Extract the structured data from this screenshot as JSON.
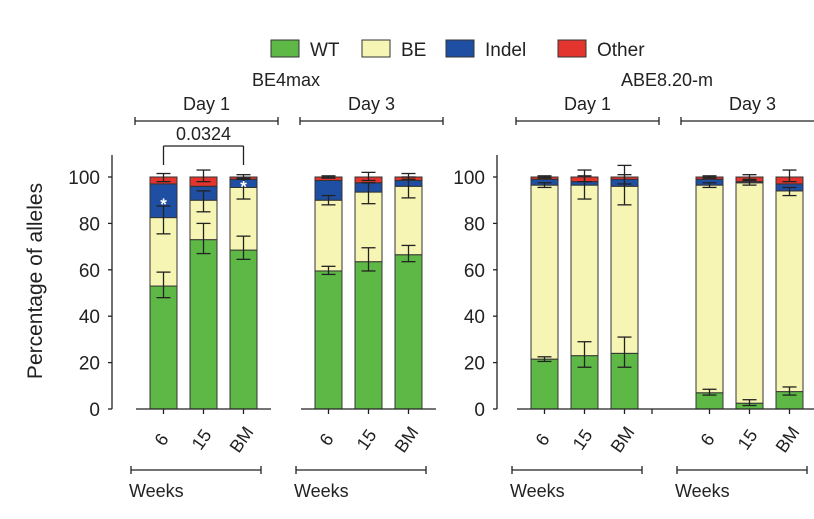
{
  "chart_data": {
    "type": "bar",
    "stacked": true,
    "ylabel": "Percentage of alleles",
    "ylim": [
      0,
      100
    ],
    "yticks": [
      0,
      20,
      40,
      60,
      80,
      100
    ],
    "colors": {
      "WT": "#5db846",
      "BE": "#f7f5b3",
      "Indel": "#1f4fa3",
      "Other": "#e3342e"
    },
    "legend": [
      "WT",
      "BE",
      "Indel",
      "Other"
    ],
    "stack_order": [
      "WT",
      "BE",
      "Indel",
      "Other"
    ],
    "x_unit_label": "Weeks",
    "panels": [
      {
        "title": "BE4max",
        "groups": [
          {
            "label": "Day 1",
            "categories": [
              "6",
              "15",
              "BM"
            ],
            "series": [
              {
                "name": "WT",
                "values": [
                  53,
                  73,
                  68.5
                ]
              },
              {
                "name": "BE",
                "values": [
                  29.5,
                  17,
                  27
                ]
              },
              {
                "name": "Indel",
                "values": [
                  14.5,
                  6,
                  3.5
                ]
              },
              {
                "name": "Other",
                "values": [
                  3,
                  4,
                  1
                ]
              }
            ],
            "error_bars": [
              {
                "series": "WT",
                "plus": [
                  6,
                  7,
                  6
                ],
                "minus": [
                  5,
                  6,
                  4
                ]
              },
              {
                "series": "BE",
                "plus": [
                  5,
                  4,
                  4
                ],
                "minus": [
                  7,
                  5,
                  5
                ]
              },
              {
                "series": "Other",
                "plus": [
                  1.5,
                  3,
                  1
                ],
                "minus": [
                  2,
                  2,
                  1
                ]
              }
            ],
            "significance_markers": [
              "*",
              "",
              "*"
            ]
          },
          {
            "label": "Day 3",
            "categories": [
              "6",
              "15",
              "BM"
            ],
            "series": [
              {
                "name": "WT",
                "values": [
                  59.5,
                  63.5,
                  66.5
                ]
              },
              {
                "name": "BE",
                "values": [
                  30.5,
                  30,
                  29.5
                ]
              },
              {
                "name": "Indel",
                "values": [
                  8.5,
                  4,
                  2.5
                ]
              },
              {
                "name": "Other",
                "values": [
                  1.5,
                  2.5,
                  1.5
                ]
              }
            ],
            "error_bars": [
              {
                "series": "WT",
                "plus": [
                  2,
                  6,
                  4
                ],
                "minus": [
                  1.5,
                  4,
                  3
                ]
              },
              {
                "series": "BE",
                "plus": [
                  2,
                  4,
                  4
                ],
                "minus": [
                  2,
                  5,
                  5
                ]
              },
              {
                "series": "Other",
                "plus": [
                  0.5,
                  2,
                  1.5
                ],
                "minus": [
                  0.5,
                  1.5,
                  1
                ]
              }
            ]
          }
        ],
        "comparison": {
          "group": 0,
          "from": 0,
          "to": 2,
          "label": "0.0324"
        }
      },
      {
        "title": "ABE8.20-m",
        "groups": [
          {
            "label": "Day 1",
            "categories": [
              "6",
              "15",
              "BM"
            ],
            "series": [
              {
                "name": "WT",
                "values": [
                  21.5,
                  23,
                  24
                ]
              },
              {
                "name": "BE",
                "values": [
                  75,
                  73.5,
                  72
                ]
              },
              {
                "name": "Indel",
                "values": [
                  2.5,
                  1.5,
                  3
                ]
              },
              {
                "name": "Other",
                "values": [
                  1,
                  2,
                  1
                ]
              }
            ],
            "error_bars": [
              {
                "series": "WT",
                "plus": [
                  1,
                  6,
                  7
                ],
                "minus": [
                  1,
                  5,
                  6
                ]
              },
              {
                "series": "BE",
                "plus": [
                  1,
                  4,
                  5
                ],
                "minus": [
                  1,
                  6,
                  8
                ]
              },
              {
                "series": "Other",
                "plus": [
                  0.5,
                  3,
                  5
                ],
                "minus": [
                  0.5,
                  2,
                  3
                ]
              }
            ]
          },
          {
            "label": "Day 3",
            "categories": [
              "6",
              "15",
              "BM"
            ],
            "series": [
              {
                "name": "WT",
                "values": [
                  7,
                  2.5,
                  7.5
                ]
              },
              {
                "name": "BE",
                "values": [
                  89.5,
                  95,
                  86.5
                ]
              },
              {
                "name": "Indel",
                "values": [
                  2.5,
                  0.5,
                  3
                ]
              },
              {
                "name": "Other",
                "values": [
                  1,
                  2,
                  3
                ]
              }
            ],
            "error_bars": [
              {
                "series": "WT",
                "plus": [
                  1.5,
                  1.5,
                  2
                ],
                "minus": [
                  1,
                  1,
                  1.5
                ]
              },
              {
                "series": "BE",
                "plus": [
                  1,
                  1,
                  1.5
                ],
                "minus": [
                  1,
                  1,
                  2
                ]
              },
              {
                "series": "Other",
                "plus": [
                  0.5,
                  1,
                  3
                ],
                "minus": [
                  0.5,
                  1,
                  2
                ]
              }
            ]
          }
        ]
      }
    ]
  }
}
